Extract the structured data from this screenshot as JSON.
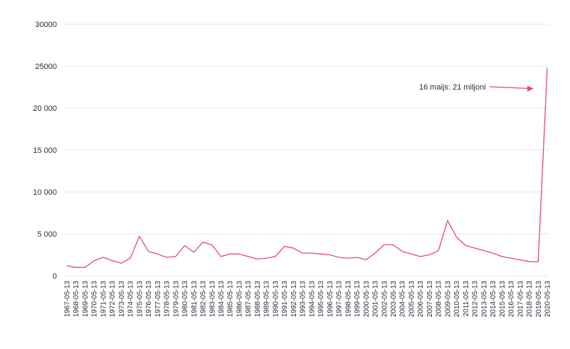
{
  "chart_data": {
    "type": "line",
    "title": "",
    "xlabel": "",
    "ylabel": "",
    "ylim": [
      0,
      30000
    ],
    "yticks": [
      0,
      5000,
      10000,
      15000,
      20000,
      25000,
      30000
    ],
    "ytick_labels": [
      "0",
      "5 000",
      "10 000",
      "15 000",
      "20 000",
      "25000",
      "30000"
    ],
    "grid": true,
    "x": [
      "1967-05-13",
      "1968-05-13",
      "1969-05-13",
      "1970-05-13",
      "1971-05-13",
      "1972-05-13",
      "1973-05-13",
      "1974-05-13",
      "1975-05-13",
      "1976-05-13",
      "1977-05-13",
      "1978-05-13",
      "1979-05-13",
      "1980-05-13",
      "1981-05-13",
      "1982-05-13",
      "1983-05-13",
      "1984-05-13",
      "1985-05-13",
      "1986-05-13",
      "1987-05-13",
      "1988-05-13",
      "1989-05-13",
      "1990-05-13",
      "1991-05-13",
      "1992-05-13",
      "1993-05-13",
      "1994-05-13",
      "1995-05-13",
      "1996-05-13",
      "1997-05-13",
      "1998-05-13",
      "1999-05-13",
      "2000-05-13",
      "2001-05-13",
      "2002-05-13",
      "2003-05-13",
      "2004-05-13",
      "2005-05-13",
      "2006-05-13",
      "2007-05-13",
      "2008-05-13",
      "2009-05-13",
      "2010-05-13",
      "2011-05-13",
      "2012-05-13",
      "2013-05-13",
      "2014-05-13",
      "2015-05-13",
      "2016-05-13",
      "2017-05-13",
      "2018-05-13",
      "2019-05-13",
      "2020-05-13"
    ],
    "series": [
      {
        "values": [
          1200,
          1000,
          1000,
          1800,
          2200,
          1800,
          1500,
          2100,
          4700,
          2900,
          2600,
          2200,
          2300,
          3600,
          2800,
          4000,
          3700,
          2300,
          2600,
          2600,
          2300,
          2000,
          2100,
          2300,
          3500,
          3300,
          2700,
          2700,
          2600,
          2500,
          2200,
          2100,
          2200,
          1900,
          2700,
          3700,
          3700,
          2900,
          2600,
          2300,
          2500,
          3000,
          6600,
          4600,
          3600,
          3300,
          3000,
          2700,
          2300,
          2100,
          1900,
          1700,
          1650,
          24800
        ],
        "color": "#e0487a"
      }
    ],
    "annotation": {
      "text": "16 maijs: 21 miljoni",
      "color": "#e0487a"
    }
  }
}
